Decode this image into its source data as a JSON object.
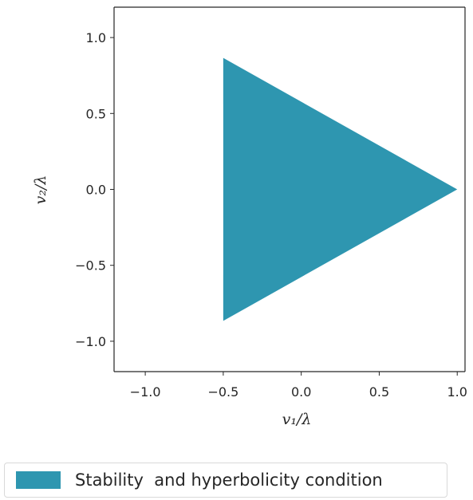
{
  "chart_data": {
    "type": "area",
    "title": "",
    "xlabel": "v₁/λ",
    "ylabel": "v₂/λ",
    "xlim": [
      -1.2,
      1.05
    ],
    "ylim": [
      -1.2,
      1.2
    ],
    "xticks": [
      -1.0,
      -0.5,
      0.0,
      0.5,
      1.0
    ],
    "xtick_labels": [
      "−1.0",
      "−0.5",
      "0.0",
      "0.5",
      "1.0"
    ],
    "yticks": [
      1.0,
      0.5,
      0.0,
      -0.5,
      -1.0
    ],
    "ytick_labels": [
      "1.0",
      "0.5",
      "0.0",
      "−0.5",
      "−1.0"
    ],
    "grid": false,
    "legend_position": "bottom-left, below plot",
    "series": [
      {
        "name": "Stability  and hyperbolicity condition",
        "color": "#2e96b0",
        "region_vertices": [
          [
            -0.5,
            0.866
          ],
          [
            1.0,
            0.0
          ],
          [
            -0.5,
            -0.866
          ]
        ]
      }
    ]
  }
}
